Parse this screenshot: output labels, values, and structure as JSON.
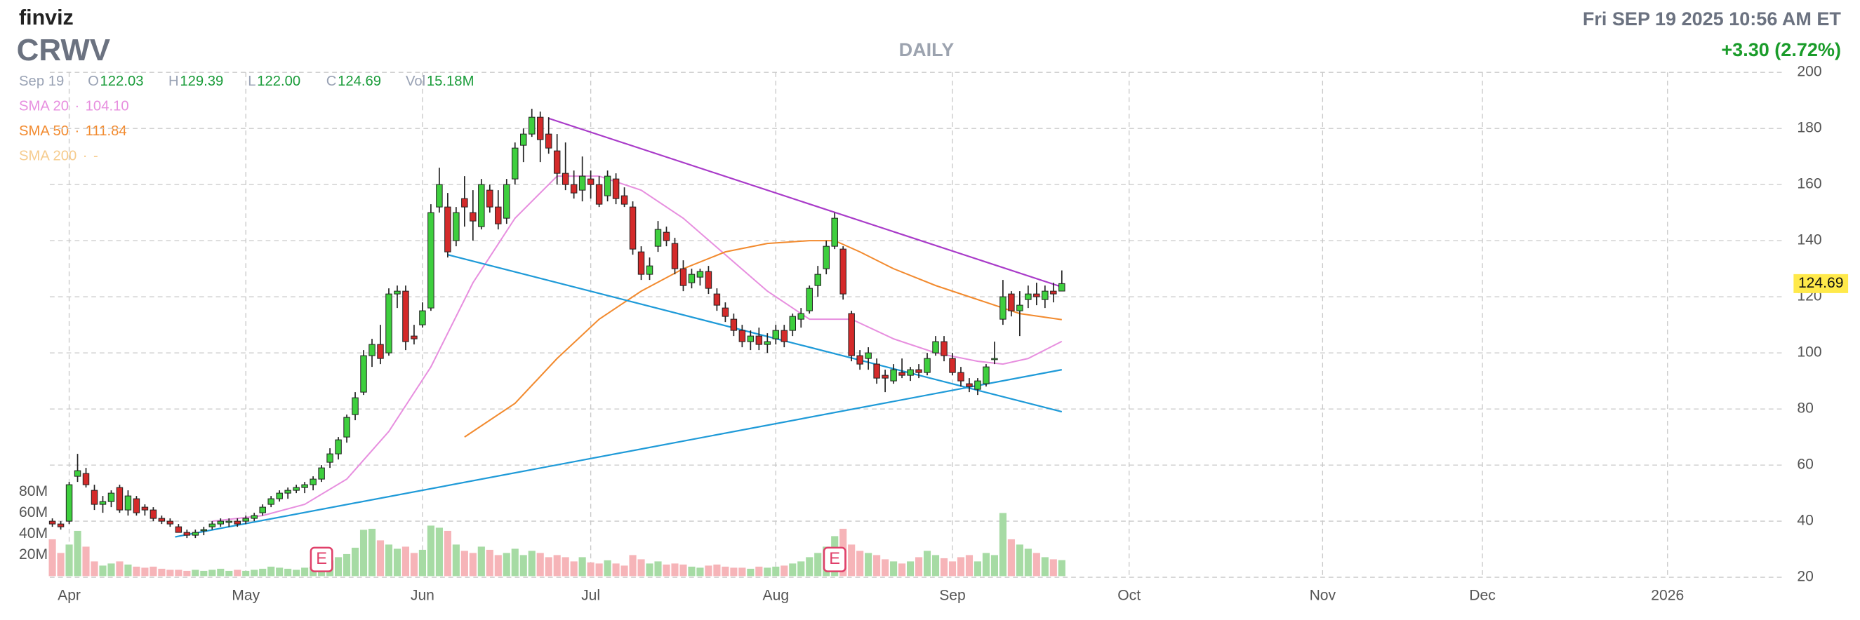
{
  "header": {
    "brand": "finviz",
    "interval": "DAILY",
    "datetime": "Fri SEP 19 2025 10:56 AM ET",
    "change": "+3.30 (2.72%)"
  },
  "legend": {
    "date": "Sep 19",
    "items": [
      {
        "key": "O",
        "value": "122.03"
      },
      {
        "key": "H",
        "value": "129.39"
      },
      {
        "key": "L",
        "value": "122.00"
      },
      {
        "key": "C",
        "value": "124.69"
      },
      {
        "key": "Vol",
        "value": "15.18M"
      }
    ],
    "separator": "·",
    "sma": [
      {
        "name": "SMA 20",
        "value": "104.10",
        "color": "#e78fdf"
      },
      {
        "name": "SMA 50",
        "value": "111.84",
        "color": "#f28a2e"
      },
      {
        "name": "SMA 200",
        "value": "-",
        "color": "#f6cc8e"
      }
    ]
  },
  "chart_data": {
    "type": "candlestick",
    "title": "CRWV",
    "xlim": [
      -0.3,
      206
    ],
    "xticks": [
      {
        "value": 2,
        "label": "Apr"
      },
      {
        "value": 23,
        "label": "May"
      },
      {
        "value": 44,
        "label": "Jun"
      },
      {
        "value": 64,
        "label": "Jul"
      },
      {
        "value": 86,
        "label": "Aug"
      },
      {
        "value": 107,
        "label": "Sep"
      },
      {
        "value": 128,
        "label": "Oct"
      },
      {
        "value": 151,
        "label": "Nov"
      },
      {
        "value": 170,
        "label": "Dec"
      },
      {
        "value": 192,
        "label": "2026"
      }
    ],
    "ylim": [
      20,
      200
    ],
    "yticks": [
      20,
      40,
      60,
      80,
      100,
      120,
      140,
      160,
      180,
      200
    ],
    "grid": true,
    "up_color": "#3ecf3e",
    "down_color": "#d42a2a",
    "candles": {
      "open": [
        40,
        39,
        40,
        56,
        57,
        51,
        46,
        47,
        52,
        44,
        48,
        45,
        44,
        41,
        40,
        38,
        36,
        35,
        37,
        38,
        39,
        40,
        40,
        40,
        41,
        43,
        46,
        48,
        50,
        51,
        52,
        53,
        55,
        61,
        64,
        70,
        78,
        86,
        99,
        103,
        100,
        121,
        122,
        106,
        110,
        116,
        152,
        152,
        140,
        155,
        150,
        145,
        158,
        152,
        148,
        162,
        174,
        178,
        184,
        178,
        172,
        164,
        160,
        158,
        162,
        160,
        156,
        162,
        156,
        152,
        136,
        128,
        138,
        143,
        139,
        130,
        125,
        127,
        129,
        121,
        116,
        112,
        108,
        104,
        106,
        103,
        105,
        108,
        108,
        112,
        115,
        124,
        130,
        138,
        137,
        114,
        99,
        98,
        96,
        92,
        90,
        93,
        92,
        94,
        93,
        100,
        104,
        98,
        93,
        89,
        87,
        89,
        98,
        112,
        121,
        115,
        119,
        121,
        119,
        122,
        122.03
      ],
      "high": [
        41,
        40,
        54,
        64,
        59,
        53,
        49,
        51,
        53,
        51,
        49,
        46,
        45,
        42,
        41,
        39,
        37,
        37,
        38,
        40,
        41,
        41,
        41,
        42,
        43,
        46,
        49,
        51,
        52,
        53,
        54,
        56,
        60,
        66,
        70,
        78,
        86,
        101,
        105,
        110,
        123,
        124,
        124,
        110,
        118,
        153,
        166,
        157,
        152,
        163,
        158,
        162,
        160,
        158,
        162,
        175,
        180,
        187,
        186,
        184,
        178,
        175,
        165,
        170,
        165,
        163,
        165,
        164,
        159,
        154,
        138,
        134,
        147,
        145,
        141,
        133,
        130,
        130,
        131,
        123,
        118,
        114,
        110,
        108,
        109,
        107,
        110,
        110,
        114,
        116,
        124,
        131,
        140,
        150,
        138,
        115,
        101,
        102,
        98,
        94,
        96,
        98,
        95,
        96,
        100,
        106,
        106,
        100,
        95,
        91,
        91,
        96,
        104,
        126,
        122,
        122,
        124,
        125,
        124,
        125,
        129.39
      ],
      "low": [
        38,
        37,
        39,
        54,
        52,
        44,
        43,
        45,
        43,
        42,
        42,
        42,
        40,
        39,
        38,
        36,
        34,
        34,
        35,
        37,
        38,
        38,
        38,
        39,
        40,
        42,
        45,
        47,
        48,
        50,
        50,
        51,
        54,
        59,
        62,
        68,
        76,
        85,
        95,
        96,
        99,
        116,
        101,
        103,
        109,
        115,
        150,
        134,
        138,
        145,
        140,
        144,
        150,
        144,
        146,
        160,
        168,
        177,
        168,
        171,
        160,
        158,
        155,
        154,
        155,
        152,
        154,
        153,
        152,
        135,
        126,
        126,
        136,
        138,
        128,
        122,
        123,
        124,
        121,
        115,
        111,
        106,
        102,
        101,
        101,
        100,
        103,
        102,
        106,
        109,
        114,
        120,
        128,
        137,
        119,
        97,
        94,
        94,
        89,
        86,
        89,
        91,
        90,
        91,
        92,
        99,
        97,
        92,
        88,
        86,
        85,
        88,
        96,
        110,
        113,
        106,
        116,
        117,
        116,
        118,
        122
      ],
      "close": [
        39,
        38,
        53,
        58,
        53,
        46,
        47,
        50,
        44,
        49,
        43,
        44,
        41,
        40,
        39,
        36,
        35,
        36,
        37,
        39,
        40,
        40,
        39,
        41,
        42,
        45,
        48,
        50,
        51,
        52,
        53,
        55,
        59,
        64,
        69,
        77,
        84,
        99,
        103,
        98,
        121,
        122,
        104,
        105,
        115,
        150,
        160,
        136,
        150,
        152,
        147,
        160,
        152,
        146,
        160,
        173,
        178,
        184,
        176,
        173,
        164,
        160,
        157,
        163,
        160,
        153,
        163,
        155,
        153,
        137,
        128,
        131,
        144,
        140,
        130,
        124,
        128,
        129,
        123,
        117,
        113,
        108,
        104,
        106,
        103,
        104,
        108,
        104,
        113,
        114,
        123,
        128,
        138,
        148,
        121,
        99,
        96,
        100,
        91,
        91,
        94,
        92,
        94,
        93,
        98,
        104,
        99,
        93,
        90,
        88,
        90,
        95,
        98,
        120,
        115,
        117,
        121,
        120,
        122,
        121,
        124.69
      ]
    },
    "volume": {
      "values": [
        35,
        22,
        30,
        43,
        28,
        14,
        10,
        12,
        14,
        11,
        9,
        8,
        9,
        7,
        6,
        6,
        5,
        6,
        5,
        6,
        7,
        5,
        6,
        5,
        6,
        7,
        9,
        8,
        7,
        6,
        8,
        9,
        12,
        15,
        18,
        21,
        27,
        44,
        45,
        34,
        30,
        26,
        28,
        22,
        25,
        48,
        46,
        43,
        30,
        24,
        22,
        28,
        25,
        20,
        22,
        26,
        20,
        24,
        22,
        18,
        20,
        18,
        14,
        18,
        13,
        12,
        15,
        12,
        10,
        20,
        16,
        12,
        14,
        11,
        12,
        11,
        9,
        8,
        10,
        11,
        9,
        8,
        8,
        7,
        9,
        8,
        9,
        10,
        12,
        14,
        18,
        22,
        28,
        38,
        45,
        30,
        24,
        22,
        20,
        16,
        14,
        12,
        14,
        18,
        24,
        20,
        17,
        14,
        18,
        20,
        14,
        22,
        20,
        60,
        35,
        30,
        26,
        22,
        18,
        16,
        15.18
      ],
      "ylim": [
        0,
        100
      ],
      "yticks": [
        {
          "value": 20,
          "label": "20M"
        },
        {
          "value": 40,
          "label": "40M"
        },
        {
          "value": 60,
          "label": "60M"
        },
        {
          "value": 80,
          "label": "80M"
        }
      ],
      "up_color": "#a6dba4",
      "down_color": "#f6b4b8"
    },
    "overlays": [
      {
        "name": "SMA 20",
        "color": "#e78fdf",
        "x": [
          19,
          25,
          30,
          35,
          40,
          45,
          50,
          55,
          60,
          65,
          70,
          75,
          80,
          85,
          90,
          95,
          100,
          105,
          110,
          113,
          116,
          120
        ],
        "values": [
          40,
          42,
          46,
          55,
          72,
          95,
          125,
          148,
          163,
          163,
          158,
          148,
          135,
          122,
          112,
          112,
          105,
          100,
          97,
          96,
          98,
          104.1
        ]
      },
      {
        "name": "SMA 50",
        "color": "#f28a2e",
        "x": [
          49,
          55,
          60,
          65,
          70,
          75,
          80,
          85,
          90,
          93,
          96,
          100,
          105,
          110,
          115,
          120
        ],
        "values": [
          70,
          82,
          98,
          112,
          122,
          130,
          136,
          139,
          140,
          140,
          136,
          130,
          124,
          119,
          114,
          111.84
        ]
      }
    ],
    "trendlines": [
      {
        "color": "#a93bc9",
        "x": [
          59,
          120
        ],
        "values": [
          183.6,
          123.5
        ]
      },
      {
        "color": "#1e9ad8",
        "x": [
          47,
          120
        ],
        "values": [
          135,
          79
        ]
      },
      {
        "color": "#1e9ad8",
        "x": [
          14.6,
          120
        ],
        "values": [
          34.4,
          94
        ]
      }
    ],
    "earnings": [
      {
        "x": 32,
        "label": "E"
      },
      {
        "x": 93,
        "label": "E"
      }
    ],
    "last_price_color": "#ffe94a"
  }
}
